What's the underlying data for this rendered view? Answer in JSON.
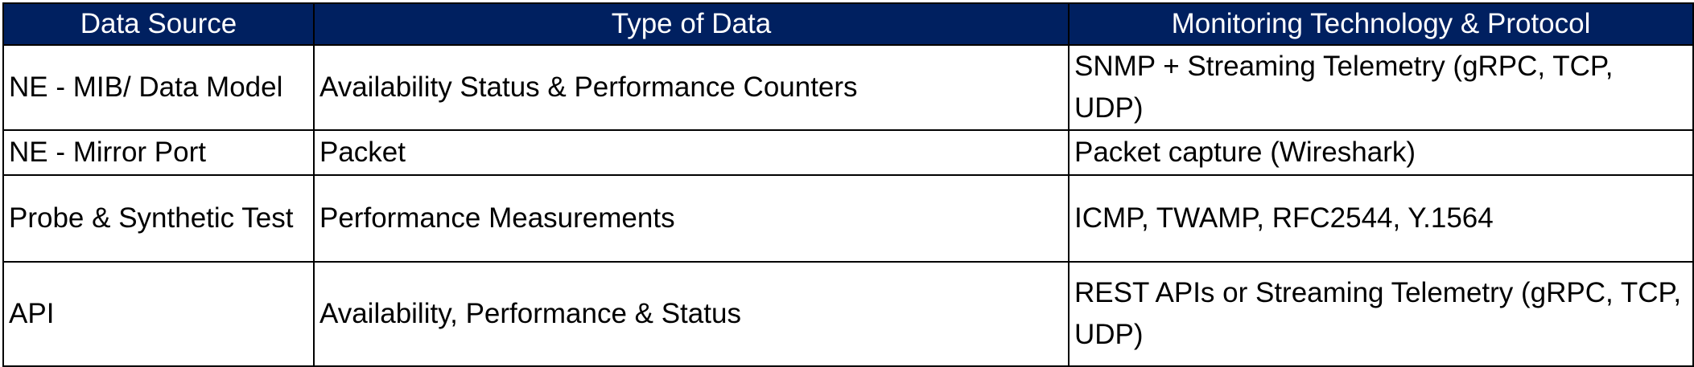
{
  "table": {
    "headers": [
      "Data Source",
      "Type of Data",
      "Monitoring Technology & Protocol"
    ],
    "rows": [
      [
        "NE - MIB/ Data Model",
        "Availability Status & Performance Counters",
        "SNMP + Streaming Telemetry (gRPC, TCP, UDP)"
      ],
      [
        "NE - Mirror Port",
        "Packet",
        "Packet capture (Wireshark)"
      ],
      [
        "Probe & Synthetic Test",
        "Performance Measurements",
        "ICMP, TWAMP, RFC2544, Y.1564"
      ],
      [
        "API",
        "Availability, Performance & Status",
        "REST APIs or Streaming Telemetry (gRPC, TCP, UDP)"
      ]
    ]
  },
  "colors": {
    "header_background": "#002060",
    "header_text": "#ffffff",
    "border": "#000000"
  }
}
